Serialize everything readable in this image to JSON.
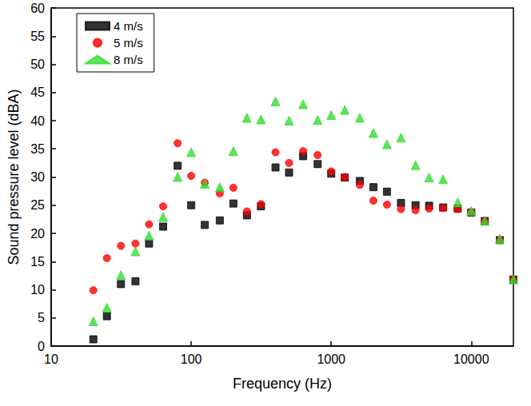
{
  "chart_data": {
    "type": "scatter",
    "x_label": "Frequency (Hz)",
    "y_label": "Sound pressure level (dBA)",
    "log": "x",
    "grid": false,
    "legend": "upper left",
    "xlim": [
      10,
      20000
    ],
    "xticks": [
      10,
      100,
      1000,
      10000
    ],
    "ylim": [
      0,
      60
    ],
    "yticks": [
      0,
      5,
      10,
      15,
      20,
      25,
      30,
      35,
      40,
      45,
      50,
      55,
      60
    ],
    "x": [
      20,
      25,
      31.5,
      40,
      50,
      63,
      80,
      100,
      125,
      160,
      200,
      250,
      315,
      400,
      500,
      630,
      800,
      1000,
      1250,
      1600,
      2000,
      2500,
      3150,
      4000,
      5000,
      6300,
      8000,
      10000,
      12500,
      16000,
      20000
    ],
    "series": [
      {
        "name": "4 m/s",
        "color": "#000000",
        "marker": "square",
        "values": [
          1.2,
          5.3,
          11,
          11.5,
          18.2,
          21.2,
          32,
          25,
          21.5,
          22.3,
          25.3,
          23.2,
          24.8,
          31.7,
          30.8,
          33.7,
          32.3,
          30.6,
          29.9,
          29.3,
          28.2,
          27.4,
          25.4,
          25.0,
          24.9,
          24.6,
          24.4,
          23.7,
          22.2,
          18.8,
          11.8
        ]
      },
      {
        "name": "5 m/s",
        "color": "#ff0000",
        "marker": "circle",
        "values": [
          9.9,
          15.6,
          17.8,
          18.2,
          21.6,
          24.8,
          36,
          30.2,
          29,
          27.1,
          28.1,
          23.9,
          25.2,
          34.4,
          32.5,
          34.6,
          33.9,
          31,
          30,
          28.6,
          25.8,
          25.1,
          24.3,
          24.1,
          24.4,
          24.5,
          24.3,
          23.8,
          22.2,
          18.8,
          11.8
        ]
      },
      {
        "name": "8 m/s",
        "color": "#33dd33",
        "marker": "triangle",
        "values": [
          4.4,
          6.8,
          12.6,
          16.8,
          19.6,
          22.9,
          30,
          34.4,
          28.8,
          28.2,
          34.6,
          40.5,
          40.2,
          43.4,
          40,
          42.9,
          40.1,
          41,
          41.9,
          40.5,
          37.8,
          35.8,
          37,
          32.1,
          29.9,
          29.6,
          25.5,
          24,
          22.2,
          19,
          11.8
        ]
      }
    ]
  }
}
